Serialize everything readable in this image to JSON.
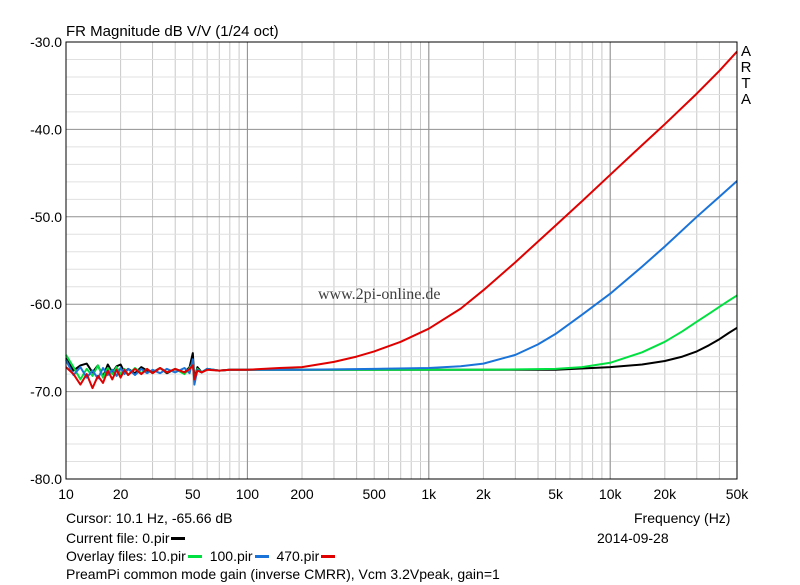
{
  "chart_data": {
    "type": "line",
    "title": "FR Magnitude dB V/V (1/24 oct)",
    "brand": "ARTA",
    "watermark": "www.2pi-online.de",
    "xlabel": "Frequency (Hz)",
    "ylabel": "",
    "x_scale": "log",
    "xlim": [
      10,
      50000
    ],
    "ylim": [
      -80,
      -30
    ],
    "grid": true,
    "x_ticks": [
      {
        "value": 10,
        "label": "10"
      },
      {
        "value": 20,
        "label": "20"
      },
      {
        "value": 50,
        "label": "50"
      },
      {
        "value": 100,
        "label": "100"
      },
      {
        "value": 200,
        "label": "200"
      },
      {
        "value": 500,
        "label": "500"
      },
      {
        "value": 1000,
        "label": "1k"
      },
      {
        "value": 2000,
        "label": "2k"
      },
      {
        "value": 5000,
        "label": "5k"
      },
      {
        "value": 10000,
        "label": "10k"
      },
      {
        "value": 20000,
        "label": "20k"
      },
      {
        "value": 50000,
        "label": "50k"
      }
    ],
    "y_ticks": [
      {
        "value": -30,
        "label": "-30.0"
      },
      {
        "value": -40,
        "label": "-40.0"
      },
      {
        "value": -50,
        "label": "-50.0"
      },
      {
        "value": -60,
        "label": "-60.0"
      },
      {
        "value": -70,
        "label": "-70.0"
      },
      {
        "value": -80,
        "label": "-80.0"
      }
    ],
    "series": [
      {
        "name": "0.pir",
        "color": "#000000",
        "points": [
          [
            10,
            -66.2
          ],
          [
            11,
            -67.6
          ],
          [
            12,
            -67.0
          ],
          [
            13,
            -66.8
          ],
          [
            14,
            -67.8
          ],
          [
            15,
            -67.0
          ],
          [
            16,
            -68.3
          ],
          [
            17,
            -66.9
          ],
          [
            18,
            -67.8
          ],
          [
            19,
            -67.1
          ],
          [
            20,
            -66.9
          ],
          [
            21,
            -67.8
          ],
          [
            22,
            -67.4
          ],
          [
            24,
            -67.9
          ],
          [
            26,
            -67.2
          ],
          [
            28,
            -67.6
          ],
          [
            30,
            -67.8
          ],
          [
            33,
            -67.3
          ],
          [
            36,
            -67.9
          ],
          [
            40,
            -67.4
          ],
          [
            45,
            -67.8
          ],
          [
            48,
            -67.2
          ],
          [
            50,
            -65.6
          ],
          [
            51,
            -68.6
          ],
          [
            53,
            -67.2
          ],
          [
            56,
            -67.8
          ],
          [
            60,
            -67.4
          ],
          [
            70,
            -67.6
          ],
          [
            80,
            -67.5
          ],
          [
            100,
            -67.5
          ],
          [
            200,
            -67.5
          ],
          [
            500,
            -67.5
          ],
          [
            1000,
            -67.5
          ],
          [
            2000,
            -67.5
          ],
          [
            5000,
            -67.5
          ],
          [
            10000,
            -67.2
          ],
          [
            15000,
            -66.9
          ],
          [
            20000,
            -66.5
          ],
          [
            25000,
            -66.0
          ],
          [
            30000,
            -65.4
          ],
          [
            35000,
            -64.7
          ],
          [
            40000,
            -64.0
          ],
          [
            45000,
            -63.3
          ],
          [
            50000,
            -62.7
          ]
        ]
      },
      {
        "name": "10.pir",
        "color": "#00e040",
        "points": [
          [
            10,
            -65.8
          ],
          [
            11,
            -67.2
          ],
          [
            12,
            -68.6
          ],
          [
            13,
            -67.4
          ],
          [
            14,
            -68.2
          ],
          [
            15,
            -67.0
          ],
          [
            16,
            -68.4
          ],
          [
            17,
            -67.3
          ],
          [
            18,
            -68.0
          ],
          [
            19,
            -67.2
          ],
          [
            20,
            -68.0
          ],
          [
            21,
            -67.4
          ],
          [
            22,
            -68.1
          ],
          [
            24,
            -67.3
          ],
          [
            26,
            -67.9
          ],
          [
            28,
            -67.4
          ],
          [
            30,
            -67.9
          ],
          [
            33,
            -67.3
          ],
          [
            36,
            -67.8
          ],
          [
            40,
            -67.4
          ],
          [
            45,
            -68.0
          ],
          [
            48,
            -67.3
          ],
          [
            50,
            -66.7
          ],
          [
            51,
            -68.9
          ],
          [
            53,
            -67.4
          ],
          [
            56,
            -67.8
          ],
          [
            60,
            -67.4
          ],
          [
            70,
            -67.6
          ],
          [
            80,
            -67.5
          ],
          [
            100,
            -67.5
          ],
          [
            200,
            -67.5
          ],
          [
            500,
            -67.5
          ],
          [
            1000,
            -67.5
          ],
          [
            2000,
            -67.5
          ],
          [
            5000,
            -67.4
          ],
          [
            7000,
            -67.2
          ],
          [
            10000,
            -66.7
          ],
          [
            15000,
            -65.5
          ],
          [
            20000,
            -64.3
          ],
          [
            25000,
            -63.1
          ],
          [
            30000,
            -62.0
          ],
          [
            35000,
            -61.1
          ],
          [
            40000,
            -60.3
          ],
          [
            45000,
            -59.6
          ],
          [
            50000,
            -59.0
          ]
        ]
      },
      {
        "name": "100.pir",
        "color": "#1a73d9",
        "points": [
          [
            10,
            -66.4
          ],
          [
            11,
            -68.1
          ],
          [
            12,
            -67.2
          ],
          [
            13,
            -68.4
          ],
          [
            14,
            -67.6
          ],
          [
            15,
            -68.5
          ],
          [
            16,
            -67.3
          ],
          [
            17,
            -68.1
          ],
          [
            18,
            -67.5
          ],
          [
            19,
            -68.2
          ],
          [
            20,
            -67.3
          ],
          [
            21,
            -68.0
          ],
          [
            22,
            -67.4
          ],
          [
            24,
            -68.1
          ],
          [
            26,
            -67.4
          ],
          [
            28,
            -67.9
          ],
          [
            30,
            -67.5
          ],
          [
            33,
            -67.9
          ],
          [
            36,
            -67.4
          ],
          [
            40,
            -67.8
          ],
          [
            45,
            -67.3
          ],
          [
            48,
            -67.9
          ],
          [
            50,
            -66.3
          ],
          [
            51,
            -69.2
          ],
          [
            53,
            -67.5
          ],
          [
            56,
            -67.8
          ],
          [
            60,
            -67.4
          ],
          [
            70,
            -67.6
          ],
          [
            80,
            -67.5
          ],
          [
            100,
            -67.5
          ],
          [
            200,
            -67.5
          ],
          [
            500,
            -67.4
          ],
          [
            1000,
            -67.3
          ],
          [
            1500,
            -67.1
          ],
          [
            2000,
            -66.8
          ],
          [
            3000,
            -65.8
          ],
          [
            4000,
            -64.6
          ],
          [
            5000,
            -63.4
          ],
          [
            7000,
            -61.2
          ],
          [
            10000,
            -58.8
          ],
          [
            15000,
            -55.7
          ],
          [
            20000,
            -53.4
          ],
          [
            30000,
            -50.0
          ],
          [
            40000,
            -47.7
          ],
          [
            50000,
            -45.9
          ]
        ]
      },
      {
        "name": "470.pir",
        "color": "#e00000",
        "points": [
          [
            10,
            -67.2
          ],
          [
            11,
            -68.0
          ],
          [
            12,
            -69.2
          ],
          [
            13,
            -68.0
          ],
          [
            14,
            -69.6
          ],
          [
            15,
            -68.2
          ],
          [
            16,
            -69.0
          ],
          [
            17,
            -67.6
          ],
          [
            18,
            -68.6
          ],
          [
            19,
            -67.5
          ],
          [
            20,
            -68.4
          ],
          [
            21,
            -67.5
          ],
          [
            22,
            -68.1
          ],
          [
            24,
            -67.4
          ],
          [
            26,
            -68.0
          ],
          [
            28,
            -67.4
          ],
          [
            30,
            -67.9
          ],
          [
            33,
            -67.3
          ],
          [
            36,
            -67.8
          ],
          [
            40,
            -67.4
          ],
          [
            45,
            -67.8
          ],
          [
            48,
            -67.4
          ],
          [
            50,
            -67.0
          ],
          [
            51,
            -68.6
          ],
          [
            53,
            -67.6
          ],
          [
            56,
            -67.8
          ],
          [
            60,
            -67.5
          ],
          [
            70,
            -67.6
          ],
          [
            80,
            -67.5
          ],
          [
            100,
            -67.5
          ],
          [
            150,
            -67.3
          ],
          [
            200,
            -67.2
          ],
          [
            300,
            -66.6
          ],
          [
            400,
            -66.0
          ],
          [
            500,
            -65.4
          ],
          [
            700,
            -64.3
          ],
          [
            1000,
            -62.8
          ],
          [
            1500,
            -60.5
          ],
          [
            2000,
            -58.4
          ],
          [
            3000,
            -55.2
          ],
          [
            5000,
            -51.0
          ],
          [
            7000,
            -48.2
          ],
          [
            10000,
            -45.2
          ],
          [
            15000,
            -41.8
          ],
          [
            20000,
            -39.4
          ],
          [
            30000,
            -35.9
          ],
          [
            40000,
            -33.3
          ],
          [
            50000,
            -31.1
          ]
        ]
      }
    ]
  },
  "cursor_text": "Cursor: 10.1 Hz, -65.66 dB",
  "current_file_label": "Current file: 0.pir",
  "current_file_color": "#000000",
  "overlay_label": "Overlay files:",
  "overlays": [
    {
      "name": "10.pir",
      "color": "#00e040"
    },
    {
      "name": "100.pir",
      "color": "#1a73d9"
    },
    {
      "name": "470.pir",
      "color": "#e00000"
    }
  ],
  "date": "2014-09-28",
  "description": "PreamPi common mode gain (inverse CMRR), Vcm 3.2Vpeak, gain=1"
}
